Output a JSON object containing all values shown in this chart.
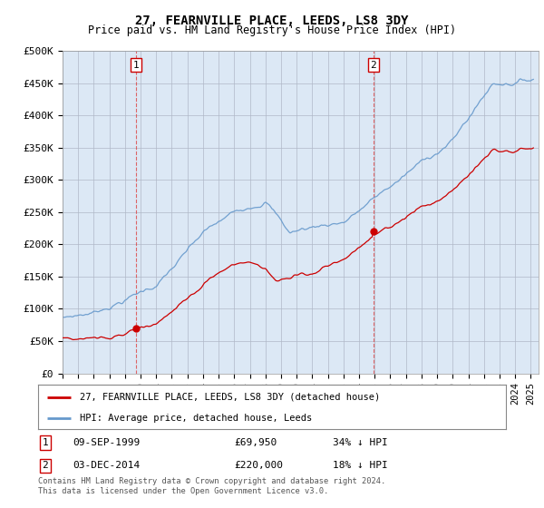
{
  "title": "27, FEARNVILLE PLACE, LEEDS, LS8 3DY",
  "subtitle": "Price paid vs. HM Land Registry's House Price Index (HPI)",
  "background_color": "#ffffff",
  "plot_bg_color": "#dce8f5",
  "grid_color": "#b0b8c8",
  "ylim": [
    0,
    500000
  ],
  "xlim_start": 1995.0,
  "xlim_end": 2025.5,
  "yticks": [
    0,
    50000,
    100000,
    150000,
    200000,
    250000,
    300000,
    350000,
    400000,
    450000,
    500000
  ],
  "ytick_labels": [
    "£0",
    "£50K",
    "£100K",
    "£150K",
    "£200K",
    "£250K",
    "£300K",
    "£350K",
    "£400K",
    "£450K",
    "£500K"
  ],
  "sale1_date": 1999.69,
  "sale1_price": 69950,
  "sale1_label": "1",
  "sale1_date_str": "09-SEP-1999",
  "sale1_price_str": "£69,950",
  "sale1_pct_str": "34% ↓ HPI",
  "sale2_date": 2014.92,
  "sale2_price": 220000,
  "sale2_label": "2",
  "sale2_date_str": "03-DEC-2014",
  "sale2_price_str": "£220,000",
  "sale2_pct_str": "18% ↓ HPI",
  "line_property_color": "#cc0000",
  "line_hpi_color": "#6699cc",
  "legend_property": "27, FEARNVILLE PLACE, LEEDS, LS8 3DY (detached house)",
  "legend_hpi": "HPI: Average price, detached house, Leeds",
  "footer": "Contains HM Land Registry data © Crown copyright and database right 2024.\nThis data is licensed under the Open Government Licence v3.0."
}
